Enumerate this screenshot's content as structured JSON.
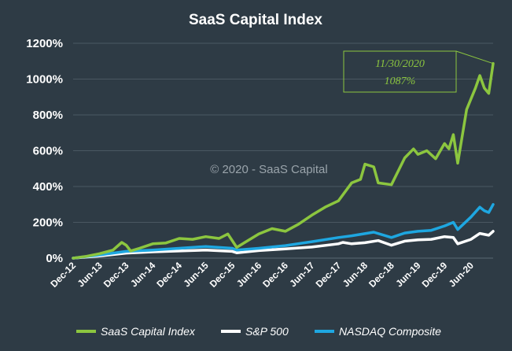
{
  "chart_data": {
    "type": "line",
    "title": "SaaS Capital Index",
    "watermark": "© 2020 - SaaS Capital",
    "y_unit": "percent",
    "ylim": [
      0,
      1200
    ],
    "ytick_labels": [
      "0%",
      "200%",
      "400%",
      "600%",
      "800%",
      "1000%",
      "1200%"
    ],
    "xlim": [
      "2012-12",
      "2020-11"
    ],
    "xtick_labels": [
      "Dec-12",
      "Jun-13",
      "Dec-13",
      "Jun-14",
      "Dec-14",
      "Jun-15",
      "Dec-15",
      "Jun-16",
      "Dec-16",
      "Jun-17",
      "Dec-17",
      "Jun-18",
      "Dec-18",
      "Jun-19",
      "Dec-19",
      "Jun-20"
    ],
    "grid": "horizontal",
    "legend_position": "bottom",
    "annotation": {
      "date_label": "11/30/2020",
      "value_label": "1087%",
      "series": "SaaS Capital Index",
      "x": "2020-11",
      "y": 1087
    },
    "series": [
      {
        "name": "SaaS Capital Index",
        "color": "#8cc63f",
        "points": [
          [
            "2012-12",
            0
          ],
          [
            "2013-03",
            10
          ],
          [
            "2013-06",
            25
          ],
          [
            "2013-09",
            45
          ],
          [
            "2013-11",
            88
          ],
          [
            "2013-12",
            72
          ],
          [
            "2014-01",
            40
          ],
          [
            "2014-03",
            55
          ],
          [
            "2014-06",
            80
          ],
          [
            "2014-09",
            85
          ],
          [
            "2014-12",
            110
          ],
          [
            "2015-03",
            105
          ],
          [
            "2015-06",
            120
          ],
          [
            "2015-09",
            110
          ],
          [
            "2015-11",
            135
          ],
          [
            "2016-01",
            60
          ],
          [
            "2016-03",
            90
          ],
          [
            "2016-06",
            135
          ],
          [
            "2016-09",
            165
          ],
          [
            "2016-12",
            150
          ],
          [
            "2017-03",
            190
          ],
          [
            "2017-06",
            240
          ],
          [
            "2017-09",
            285
          ],
          [
            "2017-12",
            320
          ],
          [
            "2018-03",
            420
          ],
          [
            "2018-05",
            440
          ],
          [
            "2018-06",
            525
          ],
          [
            "2018-08",
            510
          ],
          [
            "2018-09",
            420
          ],
          [
            "2018-12",
            410
          ],
          [
            "2019-03",
            560
          ],
          [
            "2019-05",
            610
          ],
          [
            "2019-06",
            580
          ],
          [
            "2019-08",
            600
          ],
          [
            "2019-10",
            555
          ],
          [
            "2019-12",
            640
          ],
          [
            "2020-01",
            610
          ],
          [
            "2020-02",
            690
          ],
          [
            "2020-03",
            530
          ],
          [
            "2020-05",
            830
          ],
          [
            "2020-07",
            950
          ],
          [
            "2020-08",
            1020
          ],
          [
            "2020-09",
            950
          ],
          [
            "2020-10",
            920
          ],
          [
            "2020-11",
            1087
          ]
        ]
      },
      {
        "name": "S&P 500",
        "color": "#ffffff",
        "points": [
          [
            "2012-12",
            0
          ],
          [
            "2013-06",
            12
          ],
          [
            "2013-12",
            28
          ],
          [
            "2014-06",
            35
          ],
          [
            "2014-12",
            40
          ],
          [
            "2015-06",
            45
          ],
          [
            "2015-12",
            38
          ],
          [
            "2016-01",
            30
          ],
          [
            "2016-06",
            42
          ],
          [
            "2016-12",
            52
          ],
          [
            "2017-06",
            62
          ],
          [
            "2017-12",
            80
          ],
          [
            "2018-01",
            88
          ],
          [
            "2018-03",
            80
          ],
          [
            "2018-06",
            86
          ],
          [
            "2018-09",
            98
          ],
          [
            "2018-12",
            72
          ],
          [
            "2019-03",
            95
          ],
          [
            "2019-06",
            102
          ],
          [
            "2019-09",
            105
          ],
          [
            "2019-12",
            120
          ],
          [
            "2020-02",
            115
          ],
          [
            "2020-03",
            80
          ],
          [
            "2020-06",
            105
          ],
          [
            "2020-08",
            138
          ],
          [
            "2020-10",
            128
          ],
          [
            "2020-11",
            150
          ]
        ]
      },
      {
        "name": "NASDAQ Composite",
        "color": "#1ea7e1",
        "points": [
          [
            "2012-12",
            0
          ],
          [
            "2013-06",
            18
          ],
          [
            "2013-12",
            38
          ],
          [
            "2014-06",
            45
          ],
          [
            "2014-12",
            55
          ],
          [
            "2015-06",
            65
          ],
          [
            "2015-12",
            55
          ],
          [
            "2016-01",
            45
          ],
          [
            "2016-06",
            55
          ],
          [
            "2016-12",
            70
          ],
          [
            "2017-06",
            92
          ],
          [
            "2017-12",
            115
          ],
          [
            "2018-03",
            125
          ],
          [
            "2018-08",
            145
          ],
          [
            "2018-12",
            115
          ],
          [
            "2019-03",
            140
          ],
          [
            "2019-06",
            150
          ],
          [
            "2019-09",
            155
          ],
          [
            "2019-12",
            180
          ],
          [
            "2020-02",
            200
          ],
          [
            "2020-03",
            160
          ],
          [
            "2020-06",
            230
          ],
          [
            "2020-08",
            285
          ],
          [
            "2020-09",
            265
          ],
          [
            "2020-10",
            255
          ],
          [
            "2020-11",
            300
          ]
        ]
      }
    ]
  }
}
